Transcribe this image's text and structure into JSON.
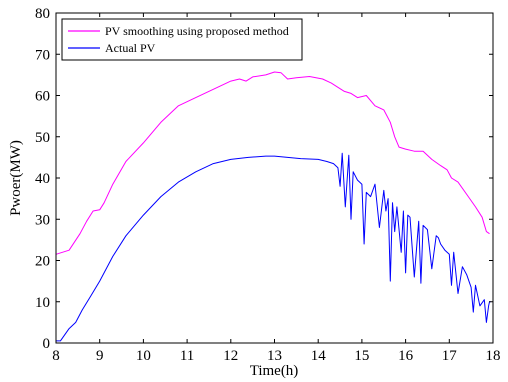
{
  "chart_data": {
    "type": "line",
    "title": "",
    "xlabel": "Time(h)",
    "ylabel": "Pwoer(MW)",
    "xlim": [
      8,
      18
    ],
    "ylim": [
      0,
      80
    ],
    "xticks": [
      8,
      9,
      10,
      11,
      12,
      13,
      14,
      15,
      16,
      17,
      18
    ],
    "yticks": [
      0,
      10,
      20,
      30,
      40,
      50,
      60,
      70,
      80
    ],
    "grid": false,
    "legend_position": "top-left",
    "series": [
      {
        "name": "PV smoothing using proposed method",
        "color": "#ff00ff",
        "x": [
          8.0,
          8.3,
          8.55,
          8.7,
          8.85,
          9.0,
          9.1,
          9.3,
          9.6,
          10.0,
          10.4,
          10.8,
          11.2,
          11.6,
          12.0,
          12.2,
          12.35,
          12.5,
          12.8,
          13.0,
          13.15,
          13.3,
          13.5,
          13.8,
          14.1,
          14.3,
          14.45,
          14.6,
          14.75,
          14.9,
          15.1,
          15.3,
          15.5,
          15.65,
          15.75,
          15.85,
          16.0,
          16.2,
          16.4,
          16.6,
          16.8,
          16.95,
          17.05,
          17.2,
          17.4,
          17.6,
          17.75,
          17.85,
          17.92
        ],
        "y": [
          21.5,
          22.5,
          26.5,
          29.5,
          32.0,
          32.3,
          34.0,
          38.5,
          44.0,
          48.5,
          53.5,
          57.5,
          59.5,
          61.5,
          63.5,
          64.0,
          63.5,
          64.5,
          65.0,
          65.7,
          65.5,
          64.0,
          64.3,
          64.6,
          64.0,
          63.0,
          62.0,
          61.0,
          60.5,
          59.5,
          60.0,
          57.5,
          56.5,
          53.5,
          50.0,
          47.5,
          47.0,
          46.5,
          46.5,
          44.5,
          43.0,
          42.0,
          40.0,
          39.0,
          36.0,
          33.0,
          30.5,
          27.0,
          26.5
        ]
      },
      {
        "name": "Actual PV",
        "color": "#0000ff",
        "x": [
          8.0,
          8.1,
          8.2,
          8.3,
          8.45,
          8.6,
          8.8,
          9.0,
          9.3,
          9.6,
          10.0,
          10.4,
          10.8,
          11.2,
          11.6,
          12.0,
          12.4,
          12.8,
          13.0,
          13.3,
          13.6,
          14.0,
          14.2,
          14.35,
          14.45,
          14.5,
          14.55,
          14.62,
          14.7,
          14.75,
          14.8,
          14.9,
          15.0,
          15.05,
          15.1,
          15.2,
          15.3,
          15.4,
          15.5,
          15.55,
          15.6,
          15.65,
          15.7,
          15.75,
          15.8,
          15.9,
          15.95,
          16.0,
          16.05,
          16.1,
          16.2,
          16.3,
          16.35,
          16.4,
          16.5,
          16.6,
          16.7,
          16.75,
          16.8,
          16.9,
          17.0,
          17.05,
          17.1,
          17.2,
          17.3,
          17.4,
          17.5,
          17.55,
          17.6,
          17.65,
          17.7,
          17.8,
          17.85,
          17.9,
          17.92,
          17.95
        ],
        "y": [
          0.5,
          0.5,
          2.0,
          3.5,
          5.0,
          8.0,
          11.5,
          15.0,
          21.0,
          26.0,
          31.0,
          35.5,
          39.0,
          41.5,
          43.5,
          44.5,
          45.0,
          45.3,
          45.3,
          45.0,
          44.7,
          44.5,
          44.0,
          43.5,
          42.5,
          38.0,
          46.0,
          33.0,
          45.5,
          30.0,
          41.5,
          39.5,
          38.5,
          24.0,
          36.5,
          35.5,
          38.5,
          28.0,
          37.0,
          32.0,
          35.0,
          15.0,
          34.0,
          27.0,
          33.0,
          22.0,
          32.0,
          17.0,
          31.0,
          30.5,
          16.0,
          29.5,
          14.5,
          28.5,
          27.5,
          18.0,
          26.0,
          25.5,
          24.0,
          22.5,
          21.5,
          14.0,
          22.0,
          12.0,
          18.5,
          16.5,
          13.5,
          7.5,
          14.0,
          11.5,
          9.0,
          10.5,
          5.0,
          9.0,
          10.0,
          10.0
        ]
      }
    ]
  }
}
